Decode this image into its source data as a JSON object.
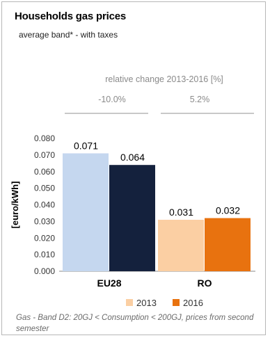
{
  "header": {
    "title": "Households gas prices",
    "subtitle": "average band* - with taxes"
  },
  "relative_change": {
    "title": "relative change 2013-2016 [%]",
    "values": [
      "-10.0%",
      "5.2%"
    ]
  },
  "footnote": "Gas - Band D2: 20GJ < Consumption < 200GJ, prices from second semester",
  "colors": {
    "eu_2013": "#c5d7ef",
    "eu_2016": "#14213d",
    "ro_2013": "#fbcfa3",
    "ro_2016": "#e8720f"
  },
  "chart_data": {
    "type": "bar",
    "categories": [
      "EU28",
      "RO"
    ],
    "series": [
      {
        "name": "2013",
        "values": [
          0.071,
          0.031
        ],
        "labels": [
          "0.071",
          "0.031"
        ]
      },
      {
        "name": "2016",
        "values": [
          0.064,
          0.032
        ],
        "labels": [
          "0.064",
          "0.032"
        ]
      }
    ],
    "ylabel": "[euro/kWh]",
    "ylim": [
      0,
      0.08
    ],
    "yticks": [
      "0.000",
      "0.010",
      "0.020",
      "0.030",
      "0.040",
      "0.050",
      "0.060",
      "0.070",
      "0.080"
    ],
    "legend": [
      "2013",
      "2016"
    ],
    "legend_position": "bottom",
    "grid": false
  }
}
